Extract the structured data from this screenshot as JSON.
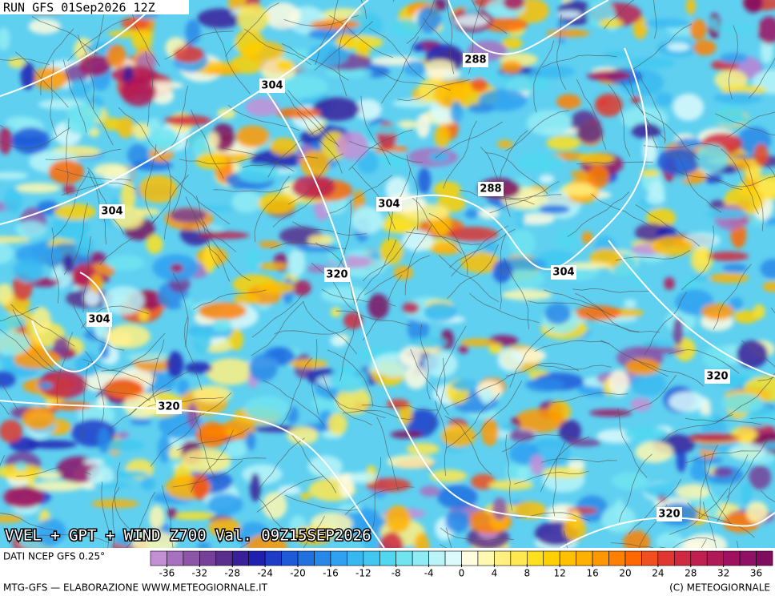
{
  "header": "RUN GFS 01Sep2026 12Z",
  "title": "VVEL + GPT + WIND Z700 Val. 09Z15SEP2026",
  "source": "DATI NCEP GFS 0.25°",
  "credit": "MTG-GFS — ELABORAZIONE WWW.METEOGIORNALE.IT",
  "copyright": "(C) METEOGIORNALE",
  "contour_labels": [
    "304",
    "288",
    "288",
    "304",
    "304",
    "304",
    "320",
    "304",
    "320",
    "320",
    "320"
  ],
  "colorbar": {
    "range": [
      -38,
      38
    ],
    "ticks": [
      -36,
      -32,
      -28,
      -24,
      -20,
      -16,
      -12,
      -8,
      -4,
      0,
      4,
      8,
      12,
      16,
      20,
      24,
      28,
      32,
      36
    ],
    "colors": [
      "#c58fd6",
      "#a870c0",
      "#8c55a8",
      "#763f98",
      "#5a2e8c",
      "#3a1f9a",
      "#2020b0",
      "#1e3cc8",
      "#1e5ad8",
      "#2070e0",
      "#2888e8",
      "#30a0f0",
      "#38b8f0",
      "#40c8f0",
      "#50d8f0",
      "#70e4f0",
      "#90ecf4",
      "#b8f4f8",
      "#dcfafc",
      "#fffce0",
      "#fff8b0",
      "#fff080",
      "#ffe850",
      "#ffe020",
      "#ffd000",
      "#ffc000",
      "#ffb000",
      "#ff9800",
      "#ff8000",
      "#ff6800",
      "#f05020",
      "#e03830",
      "#d02840",
      "#c02050",
      "#b01858",
      "#a01060",
      "#901068",
      "#800c60"
    ]
  }
}
